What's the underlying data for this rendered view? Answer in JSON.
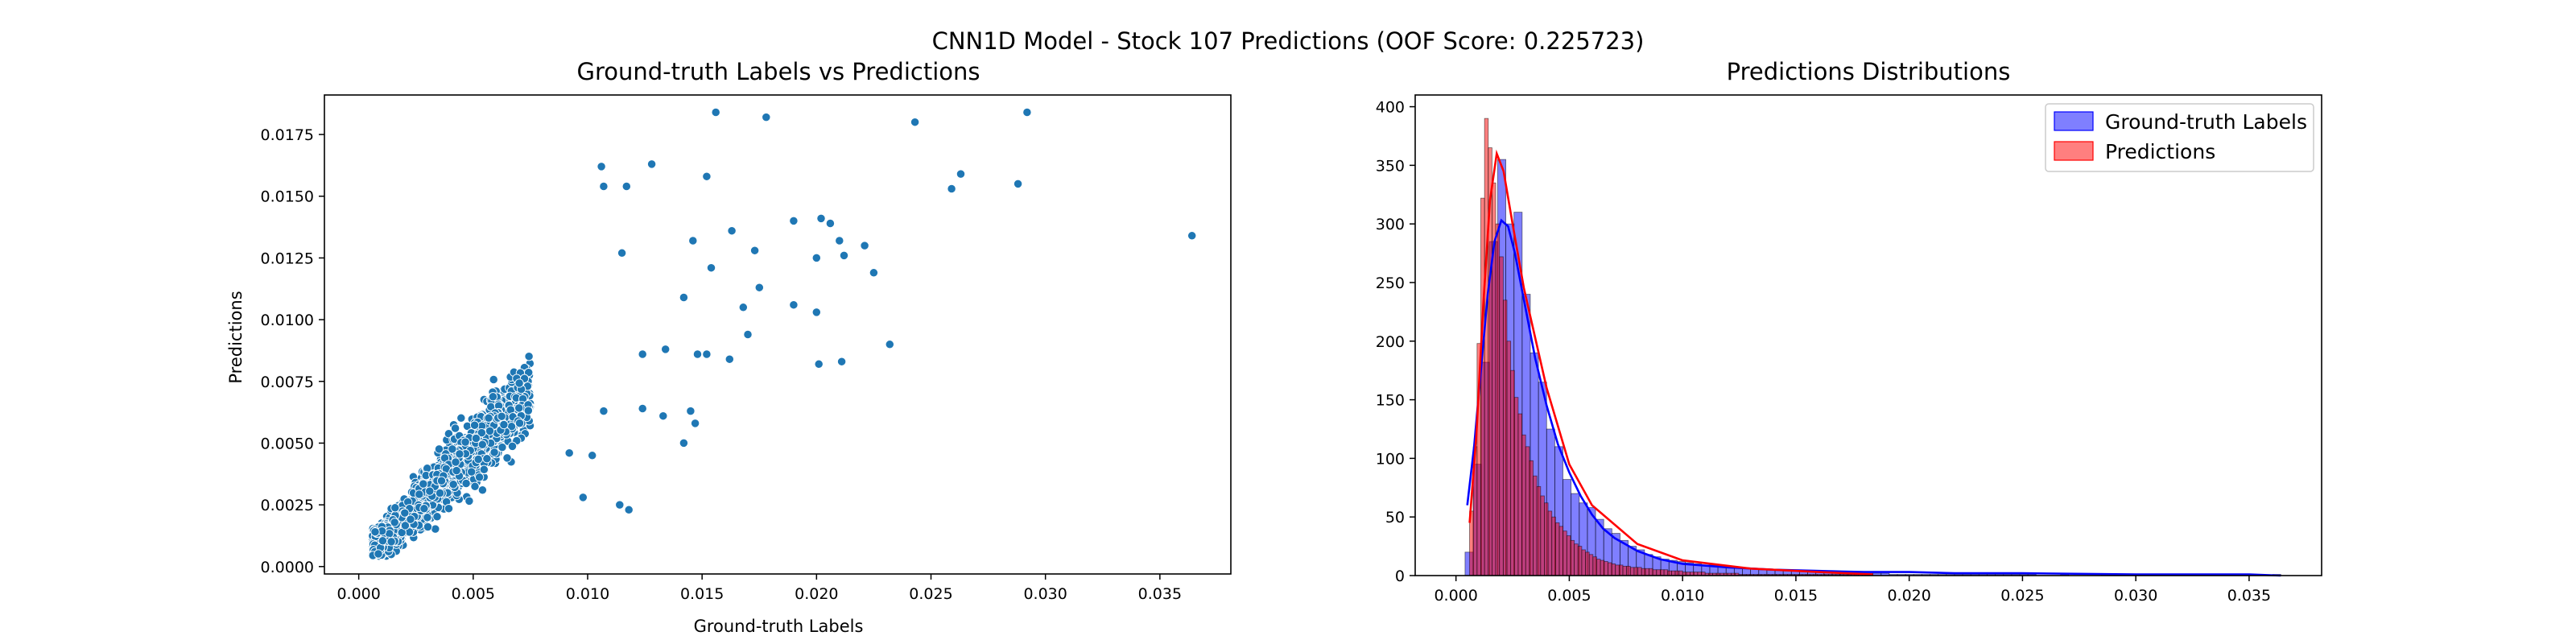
{
  "figure": {
    "suptitle": "CNN1D Model - Stock 107 Predictions (OOF Score: 0.225723)"
  },
  "chart_data": [
    {
      "type": "scatter",
      "title": "Ground-truth Labels vs Predictions",
      "xlabel": "Ground-truth Labels",
      "ylabel": "Predictions",
      "xlim": [
        -0.0015,
        0.0381
      ],
      "ylim": [
        -0.0003,
        0.0191
      ],
      "xticks": [
        "0.000",
        "0.005",
        "0.010",
        "0.015",
        "0.020",
        "0.025",
        "0.030",
        "0.035"
      ],
      "yticks": [
        "0.0000",
        "0.0025",
        "0.0050",
        "0.0075",
        "0.0100",
        "0.0125",
        "0.0150",
        "0.0175"
      ],
      "grid": false,
      "color": "#1f77b4",
      "cluster": {
        "n": 1900,
        "x_range": [
          0.0006,
          0.0075
        ],
        "slope": 0.95,
        "spread": 0.0006
      },
      "points": [
        [
          0.0156,
          0.0184
        ],
        [
          0.0178,
          0.0182
        ],
        [
          0.0243,
          0.018
        ],
        [
          0.0292,
          0.0184
        ],
        [
          0.0106,
          0.0162
        ],
        [
          0.0128,
          0.0163
        ],
        [
          0.0152,
          0.0158
        ],
        [
          0.0107,
          0.0154
        ],
        [
          0.0117,
          0.0154
        ],
        [
          0.0263,
          0.0159
        ],
        [
          0.0259,
          0.0153
        ],
        [
          0.0288,
          0.0155
        ],
        [
          0.0364,
          0.0134
        ],
        [
          0.0225,
          0.0119
        ],
        [
          0.0146,
          0.0132
        ],
        [
          0.019,
          0.014
        ],
        [
          0.0202,
          0.0141
        ],
        [
          0.0206,
          0.0139
        ],
        [
          0.0163,
          0.0136
        ],
        [
          0.0173,
          0.0128
        ],
        [
          0.021,
          0.0132
        ],
        [
          0.0212,
          0.0126
        ],
        [
          0.0221,
          0.013
        ],
        [
          0.02,
          0.0125
        ],
        [
          0.0115,
          0.0127
        ],
        [
          0.0154,
          0.0121
        ],
        [
          0.0175,
          0.0113
        ],
        [
          0.0168,
          0.0105
        ],
        [
          0.017,
          0.0094
        ],
        [
          0.0142,
          0.0109
        ],
        [
          0.019,
          0.0106
        ],
        [
          0.02,
          0.0103
        ],
        [
          0.0232,
          0.009
        ],
        [
          0.0201,
          0.0082
        ],
        [
          0.0211,
          0.0083
        ],
        [
          0.0152,
          0.0086
        ],
        [
          0.0162,
          0.0084
        ],
        [
          0.0148,
          0.0086
        ],
        [
          0.0134,
          0.0088
        ],
        [
          0.0124,
          0.0086
        ],
        [
          0.0145,
          0.0063
        ],
        [
          0.0133,
          0.0061
        ],
        [
          0.0147,
          0.0058
        ],
        [
          0.0142,
          0.005
        ],
        [
          0.0124,
          0.0064
        ],
        [
          0.0107,
          0.0063
        ],
        [
          0.0114,
          0.0025
        ],
        [
          0.0118,
          0.0023
        ],
        [
          0.0098,
          0.0028
        ],
        [
          0.0092,
          0.0046
        ],
        [
          0.0102,
          0.0045
        ]
      ]
    },
    {
      "type": "histogram",
      "title": "Predictions Distributions",
      "xlim": [
        -0.0018,
        0.0382
      ],
      "ylim": [
        0,
        410
      ],
      "xticks": [
        "0.000",
        "0.005",
        "0.010",
        "0.015",
        "0.020",
        "0.025",
        "0.030",
        "0.035"
      ],
      "yticks": [
        "0",
        "50",
        "100",
        "150",
        "200",
        "250",
        "300",
        "350",
        "400"
      ],
      "grid": false,
      "legend_position": "upper right",
      "series": [
        {
          "name": "Ground-truth Labels",
          "color": "#0000ff",
          "bin_width": 0.00036,
          "x_start": 0.0004,
          "counts": [
            20,
            95,
            182,
            285,
            355,
            300,
            310,
            240,
            190,
            165,
            125,
            110,
            82,
            70,
            62,
            58,
            48,
            40,
            36,
            30,
            25,
            22,
            18,
            16,
            14,
            13,
            12,
            11,
            10,
            9,
            9,
            8,
            7,
            7,
            6,
            6,
            5,
            5,
            5,
            4,
            4,
            4,
            3,
            3,
            3,
            3,
            2,
            2,
            2,
            2,
            2,
            2,
            1,
            1,
            1,
            1,
            1,
            1,
            1,
            1,
            1,
            1,
            1,
            1,
            1,
            1,
            1,
            1,
            1,
            1,
            0,
            0,
            0,
            1,
            0,
            0,
            0,
            0,
            1,
            1,
            0,
            0,
            0,
            0,
            0,
            0,
            0,
            0,
            0,
            0,
            0,
            0,
            0,
            0,
            0,
            0,
            0,
            0,
            0,
            1
          ]
        },
        {
          "name": "Predictions",
          "color": "#ff0000",
          "bin_width": 0.000165,
          "x_start": 0.0006,
          "counts": [
            55,
            110,
            198,
            322,
            390,
            365,
            335,
            300,
            272,
            235,
            200,
            175,
            152,
            138,
            120,
            110,
            98,
            85,
            76,
            68,
            62,
            55,
            50,
            45,
            42,
            38,
            34,
            30,
            27,
            25,
            22,
            20,
            18,
            16,
            14,
            13,
            12,
            11,
            10,
            9,
            9,
            8,
            8,
            7,
            7,
            7,
            6,
            6,
            6,
            5,
            5,
            5,
            5,
            4,
            4,
            4,
            4,
            3,
            3,
            3,
            3,
            3,
            3,
            2,
            2,
            2,
            2,
            2,
            2,
            2,
            2,
            2,
            1,
            1,
            1,
            1,
            1,
            1,
            1,
            1,
            1,
            1,
            1,
            1,
            1,
            1,
            1,
            1,
            1,
            1,
            1,
            1,
            1,
            1,
            1,
            1,
            1,
            1,
            1,
            1,
            1,
            1,
            1,
            1,
            1,
            1,
            1
          ]
        }
      ],
      "kde_lines": [
        {
          "series": "Ground-truth Labels",
          "color": "#0000ff",
          "x": [
            0.0005,
            0.0008,
            0.0011,
            0.0014,
            0.0017,
            0.002,
            0.0023,
            0.0026,
            0.003,
            0.0035,
            0.004,
            0.0045,
            0.005,
            0.0055,
            0.006,
            0.0065,
            0.007,
            0.008,
            0.009,
            0.01,
            0.012,
            0.014,
            0.016,
            0.018,
            0.02,
            0.022,
            0.025,
            0.03,
            0.035,
            0.0364
          ],
          "y": [
            60,
            110,
            175,
            240,
            285,
            303,
            298,
            275,
            235,
            185,
            145,
            112,
            88,
            68,
            52,
            40,
            32,
            21,
            14,
            10,
            7,
            5,
            4,
            3,
            3,
            2,
            2,
            1,
            1,
            0
          ]
        },
        {
          "series": "Predictions",
          "color": "#ff0000",
          "x": [
            0.0006,
            0.0009,
            0.0012,
            0.0015,
            0.0018,
            0.0021,
            0.0025,
            0.003,
            0.004,
            0.005,
            0.006,
            0.008,
            0.01,
            0.013,
            0.016,
            0.0184
          ],
          "y": [
            45,
            120,
            230,
            320,
            360,
            345,
            300,
            245,
            160,
            95,
            60,
            27,
            13,
            6,
            3,
            1
          ]
        }
      ]
    }
  ]
}
